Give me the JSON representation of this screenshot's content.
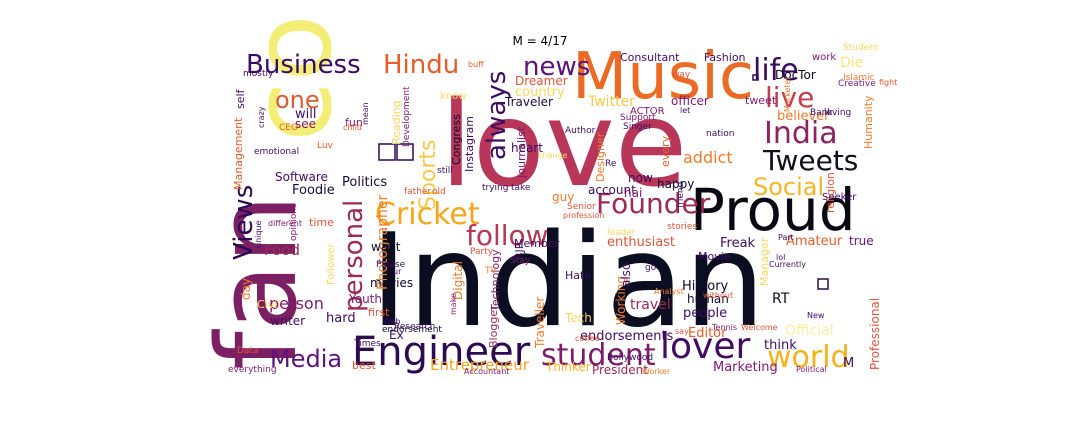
{
  "title": "M = 4/17",
  "words": [
    {
      "text": "Indian",
      "color": "#0b0d20"
    },
    {
      "text": "love",
      "color": "#b8365a"
    },
    {
      "text": "fan",
      "color": "#7c2063"
    },
    {
      "text": "co",
      "color": "#f2ee76"
    },
    {
      "text": "Music",
      "color": "#eb6a24"
    },
    {
      "text": "Proud",
      "color": "#0a0a14"
    },
    {
      "text": "Engineer",
      "color": "#2b0b52"
    },
    {
      "text": "lover",
      "color": "#450b63"
    },
    {
      "text": "Indian",
      "color": "#0b0d20"
    },
    {
      "text": "world",
      "color": "#f7b21b"
    },
    {
      "text": "student",
      "color": "#7d1a6b"
    },
    {
      "text": "Media",
      "color": "#5e137a"
    },
    {
      "text": "Cricket",
      "color": "#f8a51b"
    },
    {
      "text": "Founder",
      "color": "#9c2a55"
    },
    {
      "text": "follow",
      "color": "#b53855"
    },
    {
      "text": "Tweets",
      "color": "#10101c"
    },
    {
      "text": "India",
      "color": "#8d2361"
    },
    {
      "text": "life",
      "color": "#3b0c64"
    },
    {
      "text": "live",
      "color": "#c63e4e"
    },
    {
      "text": "news",
      "color": "#5a1377"
    },
    {
      "text": "always",
      "color": "#3e0d62"
    },
    {
      "text": "Business",
      "color": "#3a0a63"
    },
    {
      "text": "Hindu",
      "color": "#e85c2a"
    },
    {
      "text": "one",
      "color": "#de5a30"
    },
    {
      "text": "Sports",
      "color": "#f7c94a"
    },
    {
      "text": "personal",
      "color": "#9c2a55"
    },
    {
      "text": "Views",
      "color": "#2d0a55"
    },
    {
      "text": "Social",
      "color": "#f7b521"
    },
    {
      "text": "Photographer",
      "color": "#f07b2b"
    },
    {
      "text": "Politics",
      "color": "#1a0b3a"
    },
    {
      "text": "person",
      "color": "#7d1a6b"
    },
    {
      "text": "Food",
      "color": "#9c2a55"
    },
    {
      "text": "Foodie",
      "color": "#1a0b3a"
    },
    {
      "text": "Software",
      "color": "#3e0d62"
    },
    {
      "text": "Entrepreneur",
      "color": "#f7a21b"
    },
    {
      "text": "Marketing",
      "color": "#7d1a6b"
    },
    {
      "text": "endorsements",
      "color": "#3e0d62"
    },
    {
      "text": "Professional",
      "color": "#e0553a"
    },
    {
      "text": "Official",
      "color": "#fbeea0"
    },
    {
      "text": "Freak",
      "color": "#3e0d62"
    },
    {
      "text": "Movie",
      "color": "#3e0d62"
    },
    {
      "text": "History",
      "color": "#0d0b2a"
    },
    {
      "text": "human",
      "color": "#0d0b2a"
    },
    {
      "text": "people",
      "color": "#3e0d62"
    },
    {
      "text": "enthusiast",
      "color": "#e0553a"
    },
    {
      "text": "Amateur",
      "color": "#e85c2a"
    },
    {
      "text": "true",
      "color": "#5e137a"
    },
    {
      "text": "addict",
      "color": "#f07b2b"
    },
    {
      "text": "believer",
      "color": "#f07b2b"
    },
    {
      "text": "Twitter",
      "color": "#f7c94a"
    },
    {
      "text": "Traveler",
      "color": "#1a0b3a"
    },
    {
      "text": "officer",
      "color": "#7d1a6b"
    },
    {
      "text": "Consultant",
      "color": "#3e0d62"
    },
    {
      "text": "Fashion",
      "color": "#3e0d62"
    },
    {
      "text": "DocTor",
      "color": "#0d0b2a"
    },
    {
      "text": "Die",
      "color": "#f9e47c"
    },
    {
      "text": "Dreamer",
      "color": "#e0553a"
    },
    {
      "text": "country",
      "color": "#f9d860"
    },
    {
      "text": "Reading",
      "color": "#f9d860"
    },
    {
      "text": "will",
      "color": "#3e0d62"
    },
    {
      "text": "see",
      "color": "#7d1a6b"
    },
    {
      "text": "fun",
      "color": "#7d1a6b"
    },
    {
      "text": "Management",
      "color": "#e85c2a"
    },
    {
      "text": "self",
      "color": "#3e0d62"
    },
    {
      "text": "Instagram",
      "color": "#3e0d62"
    },
    {
      "text": "Congress",
      "color": "#0d0b2a"
    },
    {
      "text": "Journalist",
      "color": "#7d1a6b"
    },
    {
      "text": "heart",
      "color": "#3e0d62"
    },
    {
      "text": "Designer",
      "color": "#f07b2b"
    },
    {
      "text": "account",
      "color": "#3e0d62"
    },
    {
      "text": "now",
      "color": "#3e0d62"
    },
    {
      "text": "hai",
      "color": "#7d1a6b"
    },
    {
      "text": "guy",
      "color": "#f07b2b"
    },
    {
      "text": "happy",
      "color": "#0d0b2a"
    },
    {
      "text": "want",
      "color": "#0d0b2a"
    },
    {
      "text": "movies",
      "color": "#0d0b2a"
    },
    {
      "text": "Youth",
      "color": "#7d1a6b"
    },
    {
      "text": "writer",
      "color": "#3e0d62"
    },
    {
      "text": "hard",
      "color": "#3e0d62"
    },
    {
      "text": "day",
      "color": "#f07b2b"
    },
    {
      "text": "Civil",
      "color": "#f9d860"
    },
    {
      "text": "time",
      "color": "#e0553a"
    },
    {
      "text": "Digital",
      "color": "#f07b2b"
    },
    {
      "text": "Tech",
      "color": "#f9d860"
    },
    {
      "text": "Working",
      "color": "#f07b2b"
    },
    {
      "text": "Blogger",
      "color": "#9c2a55"
    },
    {
      "text": "Technology",
      "color": "#7d1a6b"
    },
    {
      "text": "Traveller",
      "color": "#f07b2b"
    },
    {
      "text": "Thinker",
      "color": "#f7b521"
    },
    {
      "text": "President",
      "color": "#9c2a55"
    },
    {
      "text": "Editor",
      "color": "#e85c2a"
    },
    {
      "text": "travel",
      "color": "#9c2a55"
    },
    {
      "text": "think",
      "color": "#3e0d62"
    },
    {
      "text": "RT",
      "color": "#0d0b2a"
    },
    {
      "text": "Member",
      "color": "#3e0d62"
    },
    {
      "text": "Ex",
      "color": "#3e0d62"
    },
    {
      "text": "best",
      "color": "#e0553a"
    },
    {
      "text": "first",
      "color": "#e0553a"
    },
    {
      "text": "BJP",
      "color": "#3e0d62"
    },
    {
      "text": "Hate",
      "color": "#3e0d62"
    },
    {
      "text": "also",
      "color": "#3e0d62"
    },
    {
      "text": "Manager",
      "color": "#f9d860"
    },
    {
      "text": "M",
      "color": "#3e0d62"
    },
    {
      "text": "tweet",
      "color": "#7d1a6b"
    },
    {
      "text": "Humanity",
      "color": "#f07b2b"
    },
    {
      "text": "religion",
      "color": "#e0553a"
    },
    {
      "text": "Seeker",
      "color": "#3e0d62"
    },
    {
      "text": "Bank",
      "color": "#3e0d62"
    },
    {
      "text": "loving",
      "color": "#3e0d62"
    },
    {
      "text": "work",
      "color": "#7d1a6b"
    },
    {
      "text": "Creative",
      "color": "#7d1a6b"
    },
    {
      "text": "nation",
      "color": "#3e0d62"
    },
    {
      "text": "Singer",
      "color": "#3e0d62"
    },
    {
      "text": "Support",
      "color": "#7d1a6b"
    },
    {
      "text": "ACTOR",
      "color": "#7d1a6b"
    },
    {
      "text": "Author",
      "color": "#3e0d62"
    },
    {
      "text": "emotional",
      "color": "#3e0d62"
    },
    {
      "text": "mostly",
      "color": "#3e0d62"
    },
    {
      "text": "crazy",
      "color": "#3e0d62"
    },
    {
      "text": "Development",
      "color": "#7d1a6b"
    },
    {
      "text": "Bollywood",
      "color": "#3e0d62"
    },
    {
      "text": "Times",
      "color": "#3e0d62"
    },
    {
      "text": "everything",
      "color": "#7d1a6b"
    },
    {
      "text": "endorsement",
      "color": "#0d0b2a"
    },
    {
      "text": "Data",
      "color": "#e0553a"
    },
    {
      "text": "Research",
      "color": "#3e0d62"
    },
    {
      "text": "Tennis",
      "color": "#7d1a6b"
    },
    {
      "text": "Welcome",
      "color": "#e0553a"
    },
    {
      "text": "Political",
      "color": "#7d1a6b"
    },
    {
      "text": "Worker",
      "color": "#f07b2b"
    },
    {
      "text": "Accountant",
      "color": "#7d1a6b"
    },
    {
      "text": "Senior",
      "color": "#e0553a"
    },
    {
      "text": "Party",
      "color": "#e0553a"
    },
    {
      "text": "Please",
      "color": "#3e0d62"
    },
    {
      "text": "Stay",
      "color": "#7d1a6b"
    },
    {
      "text": "Follower",
      "color": "#f9d860"
    },
    {
      "text": "different",
      "color": "#7d1a6b"
    },
    {
      "text": "unique",
      "color": "#3e0d62"
    },
    {
      "text": "opinions",
      "color": "#7d1a6b"
    },
    {
      "text": "profession",
      "color": "#e0553a"
    },
    {
      "text": "trying",
      "color": "#3e0d62"
    },
    {
      "text": "take",
      "color": "#3e0d62"
    },
    {
      "text": "stories",
      "color": "#e0553a"
    },
    {
      "text": "Currently",
      "color": "#3e0d62"
    },
    {
      "text": "Part",
      "color": "#3e0d62"
    },
    {
      "text": "friend",
      "color": "#3e0d62"
    },
    {
      "text": "New",
      "color": "#3e0d62"
    },
    {
      "text": "still",
      "color": "#3e0d62"
    },
    {
      "text": "change",
      "color": "#f9d860"
    },
    {
      "text": "father",
      "color": "#e0553a"
    },
    {
      "text": "old",
      "color": "#e0553a"
    },
    {
      "text": "Luv",
      "color": "#e85c2a"
    },
    {
      "text": "CEO",
      "color": "#e85c2a"
    },
    {
      "text": "child",
      "color": "#e0553a"
    },
    {
      "text": "mean",
      "color": "#3e0d62"
    },
    {
      "text": "know",
      "color": "#f9d860"
    },
    {
      "text": "Re",
      "color": "#3e0d62"
    },
    {
      "text": "way",
      "color": "#e0553a"
    },
    {
      "text": "let",
      "color": "#3e0d62"
    },
    {
      "text": "buff",
      "color": "#e85c2a"
    },
    {
      "text": "every",
      "color": "#e85c2a"
    },
    {
      "text": "fight",
      "color": "#e0553a"
    },
    {
      "text": "say",
      "color": "#e0553a"
    },
    {
      "text": "coffee",
      "color": "#e0553a"
    },
    {
      "text": "Web",
      "color": "#3e0d62"
    },
    {
      "text": "leader",
      "color": "#f9d860"
    },
    {
      "text": "go",
      "color": "#3e0d62"
    },
    {
      "text": "TV",
      "color": "#f07b2b"
    },
    {
      "text": "ur",
      "color": "#3e0d62"
    },
    {
      "text": "make",
      "color": "#7d1a6b"
    },
    {
      "text": "without",
      "color": "#e0553a"
    },
    {
      "text": "Marketer",
      "color": "#f07b2b"
    },
    {
      "text": "Islamic",
      "color": "#f07b2b"
    },
    {
      "text": "Analyst",
      "color": "#f07b2b"
    },
    {
      "text": "lol",
      "color": "#3e0d62"
    },
    {
      "text": "Student",
      "color": "#f9d860"
    }
  ]
}
